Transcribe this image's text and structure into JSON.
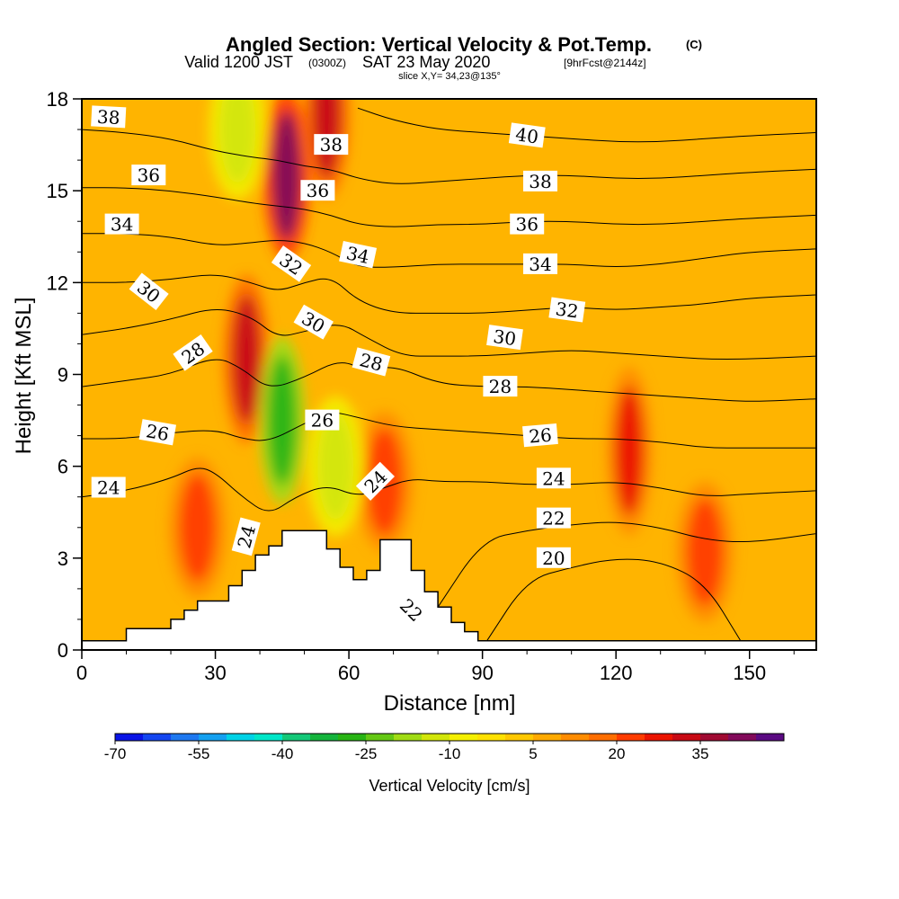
{
  "header": {
    "title": "Angled Section: Vertical Velocity & Pot.Temp.",
    "title_mark": "(C)",
    "valid_prefix": "Valid 1200 JST",
    "valid_utc": "(0300Z)",
    "valid_date": "SAT 23 May 2020",
    "valid_fcst": "[9hrFcst@2144z]",
    "slice": "slice X,Y= 34,23@135°"
  },
  "chart_data": {
    "type": "heatmap",
    "title": "Angled Section: Vertical Velocity & Pot.Temp.",
    "xlabel": "Distance [nm]",
    "ylabel": "Height [Kft MSL]",
    "xlim": [
      0,
      165
    ],
    "ylim": [
      0,
      18
    ],
    "x_ticks": [
      "0",
      "30",
      "60",
      "90",
      "120",
      "150"
    ],
    "y_ticks": [
      "0",
      "3",
      "6",
      "9",
      "12",
      "15",
      "18"
    ],
    "colorbar": {
      "label": "Vertical Velocity [cm/s]",
      "tick_labels": [
        "-70",
        "-55",
        "-40",
        "-25",
        "-10",
        "5",
        "20",
        "35"
      ],
      "colors": [
        "#0a14e6",
        "#1446f0",
        "#1e78f0",
        "#14a0f0",
        "#00d2e6",
        "#00e6c8",
        "#14c878",
        "#14b43c",
        "#28b414",
        "#64c814",
        "#a0dc14",
        "#d2e60a",
        "#f5f000",
        "#ffe100",
        "#ffc800",
        "#ffaa00",
        "#ff8c00",
        "#ff6e00",
        "#ff3c00",
        "#eb1400",
        "#c80a14",
        "#a00a32",
        "#820a5a",
        "#5a0a82"
      ]
    },
    "velocity_features": [
      {
        "x": 46,
        "y": 15.5,
        "value": 40
      },
      {
        "x": 37,
        "y": 9.5,
        "value": 30
      },
      {
        "x": 45,
        "y": 7.5,
        "value": -30
      },
      {
        "x": 26,
        "y": 4.0,
        "value": 22
      },
      {
        "x": 68,
        "y": 5.5,
        "value": 22
      },
      {
        "x": 123,
        "y": 6.5,
        "value": 25
      },
      {
        "x": 140,
        "y": 3.2,
        "value": 22
      },
      {
        "x": 57,
        "y": 6.0,
        "value": -15
      },
      {
        "x": 55,
        "y": 17.5,
        "value": 30
      },
      {
        "x": 35,
        "y": 17.0,
        "value": -15
      }
    ],
    "terrain": [
      [
        0,
        0.3
      ],
      [
        10,
        0.7
      ],
      [
        17,
        0.7
      ],
      [
        20,
        1.0
      ],
      [
        23,
        1.3
      ],
      [
        26,
        1.6
      ],
      [
        30,
        1.6
      ],
      [
        33,
        2.1
      ],
      [
        36,
        2.6
      ],
      [
        39,
        3.1
      ],
      [
        42,
        3.4
      ],
      [
        45,
        3.9
      ],
      [
        52,
        3.9
      ],
      [
        55,
        3.3
      ],
      [
        58,
        2.7
      ],
      [
        61,
        2.3
      ],
      [
        64,
        2.6
      ],
      [
        67,
        3.6
      ],
      [
        71,
        3.6
      ],
      [
        74,
        2.6
      ],
      [
        77,
        1.9
      ],
      [
        80,
        1.4
      ],
      [
        83,
        0.9
      ],
      [
        86,
        0.6
      ],
      [
        89,
        0.3
      ],
      [
        165,
        0.3
      ]
    ],
    "theta_isentropes": [
      {
        "value": 20,
        "label": "20",
        "points": [
          [
            91,
            0.3
          ],
          [
            100,
            2.3
          ],
          [
            110,
            2.7
          ],
          [
            120,
            3.0
          ],
          [
            130,
            2.9
          ],
          [
            140,
            2.2
          ],
          [
            148,
            0.3
          ]
        ]
      },
      {
        "value": 22,
        "label": "22",
        "points": [
          [
            80,
            1.4
          ],
          [
            90,
            3.6
          ],
          [
            100,
            3.9
          ],
          [
            110,
            4.1
          ],
          [
            120,
            4.2
          ],
          [
            130,
            4.0
          ],
          [
            140,
            3.6
          ],
          [
            150,
            3.5
          ],
          [
            165,
            3.8
          ]
        ]
      },
      {
        "value": 24,
        "label": "24",
        "points": [
          [
            0,
            5.0
          ],
          [
            10,
            5.2
          ],
          [
            20,
            5.6
          ],
          [
            26,
            6.0
          ],
          [
            30,
            5.8
          ],
          [
            36,
            5.0
          ],
          [
            42,
            4.4
          ],
          [
            48,
            5.0
          ],
          [
            55,
            5.4
          ],
          [
            62,
            5.0
          ],
          [
            68,
            5.3
          ],
          [
            74,
            5.6
          ],
          [
            80,
            5.5
          ],
          [
            90,
            5.5
          ],
          [
            100,
            5.4
          ],
          [
            110,
            5.4
          ],
          [
            120,
            5.5
          ],
          [
            130,
            5.3
          ],
          [
            140,
            5.0
          ],
          [
            150,
            5.1
          ],
          [
            165,
            5.2
          ]
        ]
      },
      {
        "value": 26,
        "label": "26",
        "points": [
          [
            0,
            6.9
          ],
          [
            10,
            6.9
          ],
          [
            20,
            7.1
          ],
          [
            30,
            7.2
          ],
          [
            36,
            6.9
          ],
          [
            42,
            6.8
          ],
          [
            50,
            7.4
          ],
          [
            56,
            7.8
          ],
          [
            62,
            7.6
          ],
          [
            70,
            7.3
          ],
          [
            80,
            7.2
          ],
          [
            90,
            7.1
          ],
          [
            100,
            7.0
          ],
          [
            110,
            6.9
          ],
          [
            120,
            6.9
          ],
          [
            130,
            6.8
          ],
          [
            140,
            6.6
          ],
          [
            150,
            6.6
          ],
          [
            165,
            6.6
          ]
        ]
      },
      {
        "value": 28,
        "label": "28",
        "points": [
          [
            0,
            8.6
          ],
          [
            10,
            8.8
          ],
          [
            20,
            9.0
          ],
          [
            30,
            9.6
          ],
          [
            36,
            9.2
          ],
          [
            42,
            8.5
          ],
          [
            50,
            8.9
          ],
          [
            58,
            9.5
          ],
          [
            64,
            9.1
          ],
          [
            70,
            9.3
          ],
          [
            80,
            8.7
          ],
          [
            90,
            8.6
          ],
          [
            100,
            8.6
          ],
          [
            110,
            8.5
          ],
          [
            120,
            8.4
          ],
          [
            130,
            8.3
          ],
          [
            140,
            8.2
          ],
          [
            150,
            8.1
          ],
          [
            165,
            8.2
          ]
        ]
      },
      {
        "value": 30,
        "label": "30",
        "points": [
          [
            0,
            10.3
          ],
          [
            10,
            10.5
          ],
          [
            20,
            10.8
          ],
          [
            30,
            11.2
          ],
          [
            38,
            10.9
          ],
          [
            44,
            10.2
          ],
          [
            50,
            10.4
          ],
          [
            58,
            10.7
          ],
          [
            64,
            10.2
          ],
          [
            72,
            9.6
          ],
          [
            80,
            9.6
          ],
          [
            90,
            9.6
          ],
          [
            100,
            9.7
          ],
          [
            110,
            9.8
          ],
          [
            120,
            9.7
          ],
          [
            130,
            9.6
          ],
          [
            140,
            9.5
          ],
          [
            150,
            9.5
          ],
          [
            165,
            9.6
          ]
        ]
      },
      {
        "value": 32,
        "label": "32",
        "points": [
          [
            0,
            12.0
          ],
          [
            10,
            12.0
          ],
          [
            20,
            12.1
          ],
          [
            30,
            12.3
          ],
          [
            38,
            12.0
          ],
          [
            44,
            11.7
          ],
          [
            50,
            12.0
          ],
          [
            56,
            12.2
          ],
          [
            62,
            11.4
          ],
          [
            70,
            11.0
          ],
          [
            80,
            11.0
          ],
          [
            90,
            11.0
          ],
          [
            100,
            11.1
          ],
          [
            110,
            11.2
          ],
          [
            120,
            11.1
          ],
          [
            130,
            11.2
          ],
          [
            140,
            11.3
          ],
          [
            150,
            11.5
          ],
          [
            165,
            11.6
          ]
        ]
      },
      {
        "value": 34,
        "label": "34",
        "points": [
          [
            0,
            13.6
          ],
          [
            10,
            13.6
          ],
          [
            20,
            13.5
          ],
          [
            30,
            13.2
          ],
          [
            38,
            13.3
          ],
          [
            44,
            13.4
          ],
          [
            50,
            13.3
          ],
          [
            56,
            13.0
          ],
          [
            62,
            12.5
          ],
          [
            70,
            12.5
          ],
          [
            80,
            12.6
          ],
          [
            90,
            12.6
          ],
          [
            100,
            12.6
          ],
          [
            110,
            12.6
          ],
          [
            120,
            12.5
          ],
          [
            130,
            12.6
          ],
          [
            140,
            12.8
          ],
          [
            150,
            13.0
          ],
          [
            165,
            13.1
          ]
        ]
      },
      {
        "value": 36,
        "label": "36",
        "points": [
          [
            0,
            15.1
          ],
          [
            10,
            15.1
          ],
          [
            20,
            15.0
          ],
          [
            30,
            14.8
          ],
          [
            38,
            14.6
          ],
          [
            44,
            14.5
          ],
          [
            50,
            14.4
          ],
          [
            56,
            14.2
          ],
          [
            62,
            13.9
          ],
          [
            70,
            13.8
          ],
          [
            80,
            13.9
          ],
          [
            90,
            13.9
          ],
          [
            100,
            14.0
          ],
          [
            110,
            14.0
          ],
          [
            120,
            13.9
          ],
          [
            130,
            13.9
          ],
          [
            140,
            14.0
          ],
          [
            150,
            14.1
          ],
          [
            165,
            14.2
          ]
        ]
      },
      {
        "value": 38,
        "label": "38",
        "points": [
          [
            0,
            17.0
          ],
          [
            10,
            16.9
          ],
          [
            20,
            16.7
          ],
          [
            30,
            16.3
          ],
          [
            38,
            16.1
          ],
          [
            44,
            16.0
          ],
          [
            50,
            15.8
          ],
          [
            56,
            15.7
          ],
          [
            62,
            15.4
          ],
          [
            70,
            15.2
          ],
          [
            80,
            15.3
          ],
          [
            90,
            15.4
          ],
          [
            100,
            15.5
          ],
          [
            110,
            15.5
          ],
          [
            120,
            15.4
          ],
          [
            130,
            15.4
          ],
          [
            140,
            15.5
          ],
          [
            150,
            15.6
          ],
          [
            165,
            15.7
          ]
        ]
      },
      {
        "value": 40,
        "label": "40",
        "points": [
          [
            62,
            17.7
          ],
          [
            70,
            17.3
          ],
          [
            80,
            17.0
          ],
          [
            90,
            16.9
          ],
          [
            100,
            16.8
          ],
          [
            110,
            16.7
          ],
          [
            120,
            16.6
          ],
          [
            130,
            16.6
          ],
          [
            140,
            16.7
          ],
          [
            150,
            16.8
          ],
          [
            165,
            16.9
          ]
        ]
      }
    ],
    "contour_labels": [
      {
        "text": "38",
        "x": 6,
        "y": 17.4,
        "angle": 3
      },
      {
        "text": "36",
        "x": 15,
        "y": 15.5,
        "angle": 0
      },
      {
        "text": "34",
        "x": 9,
        "y": 13.9,
        "angle": 0
      },
      {
        "text": "30",
        "x": 15,
        "y": 11.7,
        "angle": 38
      },
      {
        "text": "28",
        "x": 25,
        "y": 9.7,
        "angle": -35
      },
      {
        "text": "26",
        "x": 17,
        "y": 7.1,
        "angle": 10
      },
      {
        "text": "24",
        "x": 6,
        "y": 5.3,
        "angle": 0
      },
      {
        "text": "24",
        "x": 37,
        "y": 3.7,
        "angle": -75
      },
      {
        "text": "32",
        "x": 47,
        "y": 12.6,
        "angle": 35
      },
      {
        "text": "30",
        "x": 52,
        "y": 10.7,
        "angle": 30
      },
      {
        "text": "38",
        "x": 56,
        "y": 16.5,
        "angle": 0
      },
      {
        "text": "36",
        "x": 53,
        "y": 15.0,
        "angle": 0
      },
      {
        "text": "34",
        "x": 62,
        "y": 12.9,
        "angle": 12
      },
      {
        "text": "28",
        "x": 65,
        "y": 9.4,
        "angle": 15
      },
      {
        "text": "26",
        "x": 54,
        "y": 7.5,
        "angle": 0
      },
      {
        "text": "24",
        "x": 66,
        "y": 5.5,
        "angle": -45
      },
      {
        "text": "22",
        "x": 74,
        "y": 1.3,
        "angle": 45
      },
      {
        "text": "40",
        "x": 100,
        "y": 16.8,
        "angle": 8
      },
      {
        "text": "38",
        "x": 103,
        "y": 15.3,
        "angle": 0
      },
      {
        "text": "36",
        "x": 100,
        "y": 13.9,
        "angle": 0
      },
      {
        "text": "34",
        "x": 103,
        "y": 12.6,
        "angle": 0
      },
      {
        "text": "32",
        "x": 109,
        "y": 11.1,
        "angle": 8
      },
      {
        "text": "30",
        "x": 95,
        "y": 10.2,
        "angle": 8
      },
      {
        "text": "28",
        "x": 94,
        "y": 8.6,
        "angle": 0
      },
      {
        "text": "26",
        "x": 103,
        "y": 7.0,
        "angle": -5
      },
      {
        "text": "24",
        "x": 106,
        "y": 5.6,
        "angle": 0
      },
      {
        "text": "22",
        "x": 106,
        "y": 4.3,
        "angle": 0
      },
      {
        "text": "20",
        "x": 106,
        "y": 3.0,
        "angle": 0
      }
    ]
  }
}
